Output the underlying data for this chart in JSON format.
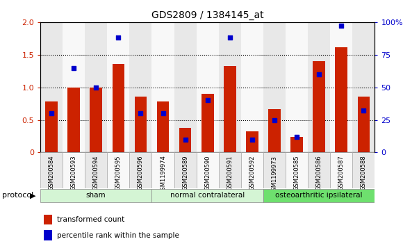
{
  "title": "GDS2809 / 1384145_at",
  "samples": [
    "GSM200584",
    "GSM200593",
    "GSM200594",
    "GSM200595",
    "GSM200596",
    "GSM1199974",
    "GSM200589",
    "GSM200590",
    "GSM200591",
    "GSM200592",
    "GSM1199973",
    "GSM200585",
    "GSM200586",
    "GSM200587",
    "GSM200588"
  ],
  "transformed_count": [
    0.78,
    1.0,
    1.0,
    1.36,
    0.86,
    0.78,
    0.38,
    0.9,
    1.33,
    0.33,
    0.67,
    0.24,
    1.4,
    1.62,
    0.86
  ],
  "percentile_rank_pct": [
    30,
    65,
    50,
    88,
    30,
    30,
    10,
    40,
    88,
    10,
    25,
    12,
    60,
    97,
    32
  ],
  "groups": [
    {
      "label": "sham",
      "start": 0,
      "end": 4,
      "color": "#d4f5d4"
    },
    {
      "label": "normal contralateral",
      "start": 5,
      "end": 9,
      "color": "#d4f5d4"
    },
    {
      "label": "osteoarthritic ipsilateral",
      "start": 10,
      "end": 14,
      "color": "#6ee06e"
    }
  ],
  "col_bg_even": "#e8e8e8",
  "col_bg_odd": "#f8f8f8",
  "bar_color": "#cc2200",
  "dot_color": "#0000cc",
  "ylim_left": [
    0,
    2
  ],
  "ylim_right": [
    0,
    100
  ],
  "yticks_left": [
    0,
    0.5,
    1.0,
    1.5,
    2.0
  ],
  "yticks_right": [
    0,
    25,
    50,
    75,
    100
  ],
  "ytick_labels_right": [
    "0",
    "25",
    "50",
    "75",
    "100%"
  ],
  "background_color": "#ffffff",
  "bar_width": 0.55,
  "dot_size": 18
}
